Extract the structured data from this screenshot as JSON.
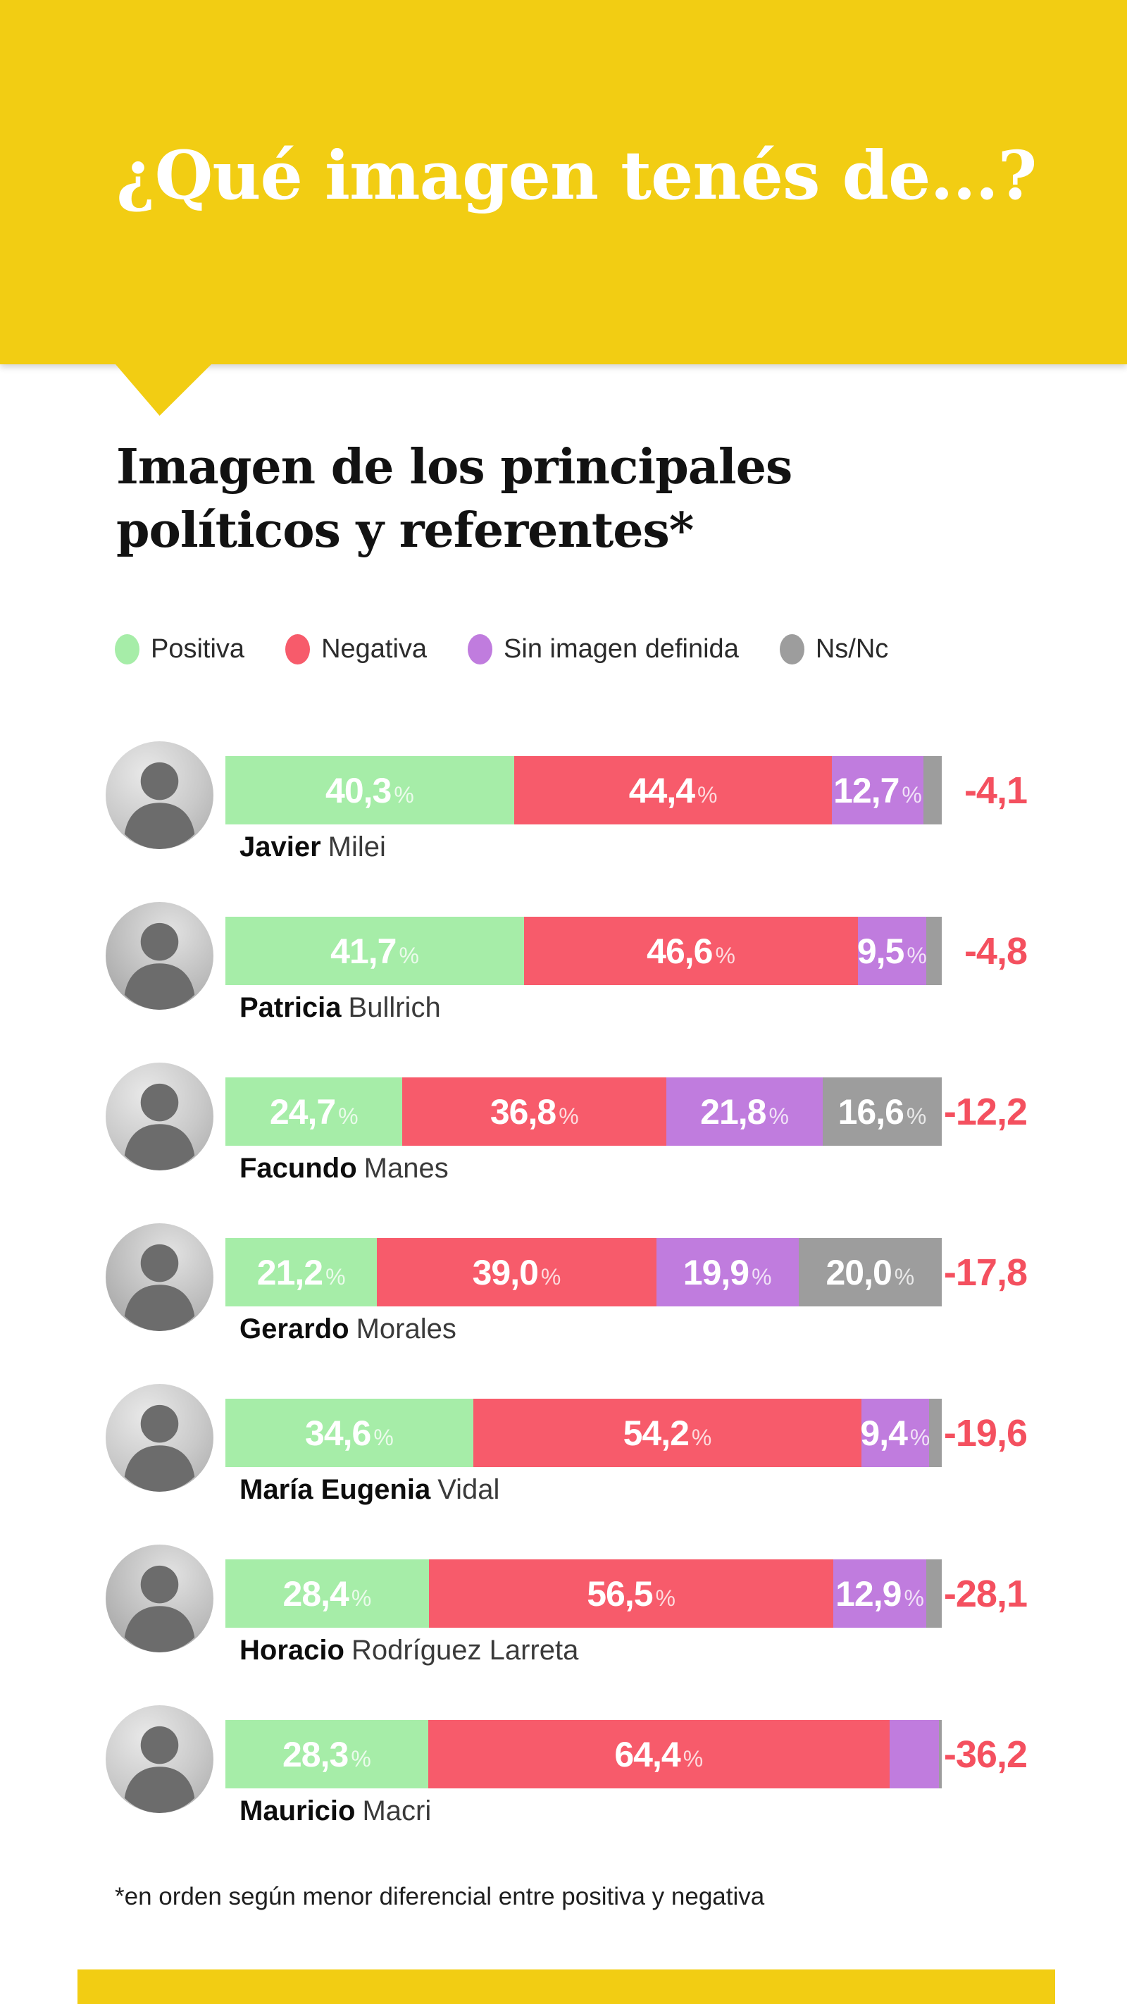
{
  "header": {
    "question": "¿Qué imagen tenés de...?"
  },
  "title": {
    "line1": "Imagen de los principales",
    "line2": "políticos y referentes*"
  },
  "colors": {
    "banner_yellow": "#F2CD13",
    "positiva": "#A6EDA8",
    "negativa": "#F75B6B",
    "sin_imagen": "#C07CDE",
    "nsnc": "#9D9D9D",
    "diff_text": "#F4505F",
    "title_text": "#121212",
    "header_text": "#FFFFFF"
  },
  "percent_suffix": "%",
  "legend": {
    "items": [
      {
        "key": "positiva",
        "label": "Positiva",
        "color": "#A6EDA8"
      },
      {
        "key": "negativa",
        "label": "Negativa",
        "color": "#F75B6B"
      },
      {
        "key": "sin_imagen",
        "label": "Sin imagen definida",
        "color": "#C07CDE"
      },
      {
        "key": "nsnc",
        "label": "Ns/Nc",
        "color": "#9D9D9D"
      }
    ]
  },
  "rows": [
    {
      "first": "Javier",
      "last": "Milei",
      "diff": "-4,1",
      "segments": [
        {
          "key": "positiva",
          "value": 40.3,
          "label": "40,3"
        },
        {
          "key": "negativa",
          "value": 44.4,
          "label": "44,4"
        },
        {
          "key": "sin_imagen",
          "value": 12.7,
          "label": "12,7"
        },
        {
          "key": "nsnc",
          "value": 2.6,
          "label": ""
        }
      ]
    },
    {
      "first": "Patricia",
      "last": "Bullrich",
      "diff": "-4,8",
      "segments": [
        {
          "key": "positiva",
          "value": 41.7,
          "label": "41,7"
        },
        {
          "key": "negativa",
          "value": 46.6,
          "label": "46,6"
        },
        {
          "key": "sin_imagen",
          "value": 9.5,
          "label": "9,5"
        },
        {
          "key": "nsnc",
          "value": 2.2,
          "label": ""
        }
      ]
    },
    {
      "first": "Facundo",
      "last": "Manes",
      "diff": "-12,2",
      "segments": [
        {
          "key": "positiva",
          "value": 24.7,
          "label": "24,7"
        },
        {
          "key": "negativa",
          "value": 36.8,
          "label": "36,8"
        },
        {
          "key": "sin_imagen",
          "value": 21.8,
          "label": "21,8"
        },
        {
          "key": "nsnc",
          "value": 16.6,
          "label": "16,6"
        }
      ]
    },
    {
      "first": "Gerardo",
      "last": "Morales",
      "diff": "-17,8",
      "segments": [
        {
          "key": "positiva",
          "value": 21.2,
          "label": "21,2"
        },
        {
          "key": "negativa",
          "value": 39.0,
          "label": "39,0"
        },
        {
          "key": "sin_imagen",
          "value": 19.9,
          "label": "19,9"
        },
        {
          "key": "nsnc",
          "value": 20.0,
          "label": "20,0"
        }
      ]
    },
    {
      "first": "María Eugenia",
      "last": "Vidal",
      "diff": "-19,6",
      "segments": [
        {
          "key": "positiva",
          "value": 34.6,
          "label": "34,6"
        },
        {
          "key": "negativa",
          "value": 54.2,
          "label": "54,2"
        },
        {
          "key": "sin_imagen",
          "value": 9.4,
          "label": "9,4"
        },
        {
          "key": "nsnc",
          "value": 1.8,
          "label": ""
        }
      ]
    },
    {
      "first": "Horacio",
      "last": "Rodríguez Larreta",
      "diff": "-28,1",
      "segments": [
        {
          "key": "positiva",
          "value": 28.4,
          "label": "28,4"
        },
        {
          "key": "negativa",
          "value": 56.5,
          "label": "56,5"
        },
        {
          "key": "sin_imagen",
          "value": 12.9,
          "label": "12,9"
        },
        {
          "key": "nsnc",
          "value": 2.2,
          "label": ""
        }
      ]
    },
    {
      "first": "Mauricio",
      "last": "Macri",
      "diff": "-36,2",
      "segments": [
        {
          "key": "positiva",
          "value": 28.3,
          "label": "28,3"
        },
        {
          "key": "negativa",
          "value": 64.4,
          "label": "64,4"
        },
        {
          "key": "sin_imagen",
          "value": 6.9,
          "label": ""
        },
        {
          "key": "nsnc",
          "value": 0.4,
          "label": ""
        }
      ]
    }
  ],
  "footnote": "*en orden según menor diferencial entre positiva y negativa",
  "chart_data": {
    "type": "bar",
    "orientation": "horizontal-stacked",
    "title": "Imagen de los principales políticos y referentes*",
    "question": "¿Qué imagen tenés de...?",
    "unit": "%",
    "categories": [
      "Javier Milei",
      "Patricia Bullrich",
      "Facundo Manes",
      "Gerardo Morales",
      "María Eugenia Vidal",
      "Horacio Rodríguez Larreta",
      "Mauricio Macri"
    ],
    "series": [
      {
        "name": "Positiva",
        "values": [
          40.3,
          41.7,
          24.7,
          21.2,
          34.6,
          28.4,
          28.3
        ]
      },
      {
        "name": "Negativa",
        "values": [
          44.4,
          46.6,
          36.8,
          39.0,
          54.2,
          56.5,
          64.4
        ]
      },
      {
        "name": "Sin imagen definida",
        "values": [
          12.7,
          9.5,
          21.8,
          19.9,
          9.4,
          12.9,
          6.9
        ]
      },
      {
        "name": "Ns/Nc",
        "values": [
          2.6,
          2.2,
          16.6,
          20.0,
          1.8,
          2.2,
          0.4
        ]
      }
    ],
    "differentials": [
      -4.1,
      -4.8,
      -12.2,
      -17.8,
      -19.6,
      -28.1,
      -36.2
    ],
    "xlim": [
      0,
      100
    ],
    "legend_position": "top",
    "grid": false,
    "footnote": "*en orden según menor diferencial entre positiva y negativa"
  }
}
